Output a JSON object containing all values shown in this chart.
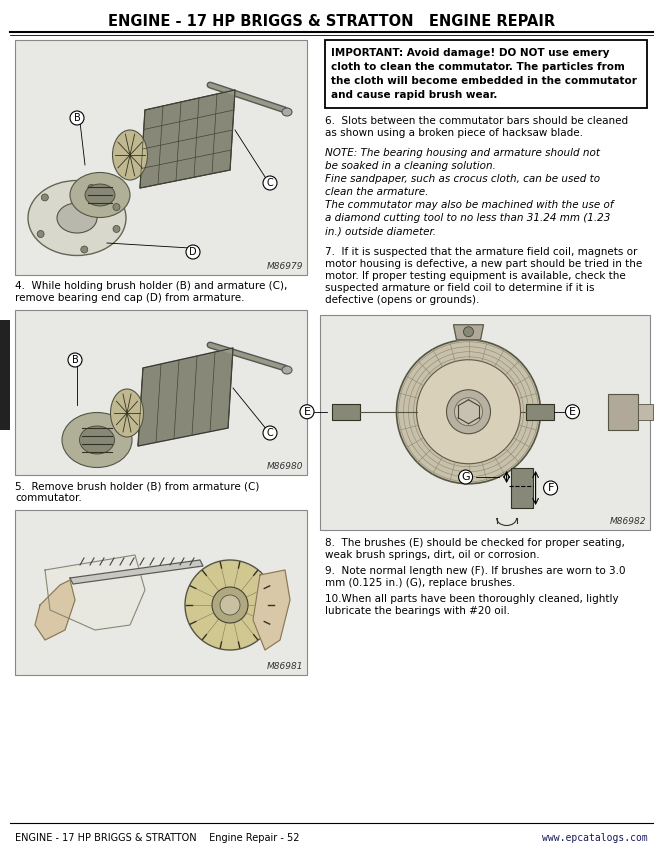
{
  "title": "ENGINE - 17 HP BRIGGS & STRATTON   ENGINE REPAIR",
  "footer_left": "ENGINE - 17 HP BRIGGS & STRATTON    Engine Repair - 52",
  "footer_right": "www.epcatalogs.com",
  "bg_color": "#f0f0ec",
  "page_bg": "#ffffff",
  "imp_line1": "IMPORTANT: Avoid damage! DO NOT use emery",
  "imp_line2": "cloth to clean the commutator. The particles from",
  "imp_line3": "the cloth will become embedded in the commutator",
  "imp_line4": "and cause rapid brush wear.",
  "step6_line1": "6.  Slots between the commutator bars should be cleaned",
  "step6_line2": "as shown using a broken piece of hacksaw blade.",
  "note_line1": "NOTE: The bearing housing and armature should not",
  "note_line2": "be soaked in a cleaning solution.",
  "note_line3": "Fine sandpaper, such as crocus cloth, can be used to",
  "note_line4": "clean the armature.",
  "note_line5": "The commutator may also be machined with the use of",
  "note_line6": "a diamond cutting tool to no less than 31.24 mm (1.23",
  "note_line7": "in.) outside diameter.",
  "step7_line1": "7.  If it is suspected that the armature field coil, magnets or",
  "step7_line2": "motor housing is defective, a new part should be tried in the",
  "step7_line3": "motor. If proper testing equipment is available, check the",
  "step7_line4": "suspected armature or field coil to determine if it is",
  "step7_line5": "defective (opens or grounds).",
  "step8_line1": "8.  The brushes (E) should be checked for proper seating,",
  "step8_line2": "weak brush springs, dirt, oil or corrosion.",
  "step9_line1": "9.  Note normal length new (F). If brushes are worn to 3.0",
  "step9_line2": "mm (0.125 in.) (G), replace brushes.",
  "step10_line1": "10.When all parts have been thoroughly cleaned, lightly",
  "step10_line2": "lubricate the bearings with #20 oil.",
  "cap4_line1": "4.  While holding brush holder (B) and armature (C),",
  "cap4_line2": "remove bearing end cap (D) from armature.",
  "cap5_line1": "5.  Remove brush holder (B) from armature (C)",
  "cap5_line2": "commutator.",
  "fig_num1": "M86979",
  "fig_num2": "M86980",
  "fig_num3": "M86981",
  "fig_num4": "M86982",
  "gray_light": "#e8e8e4",
  "gray_mid": "#b0b0a8",
  "gray_dark": "#707068",
  "black": "#1a1a1a",
  "white": "#ffffff"
}
